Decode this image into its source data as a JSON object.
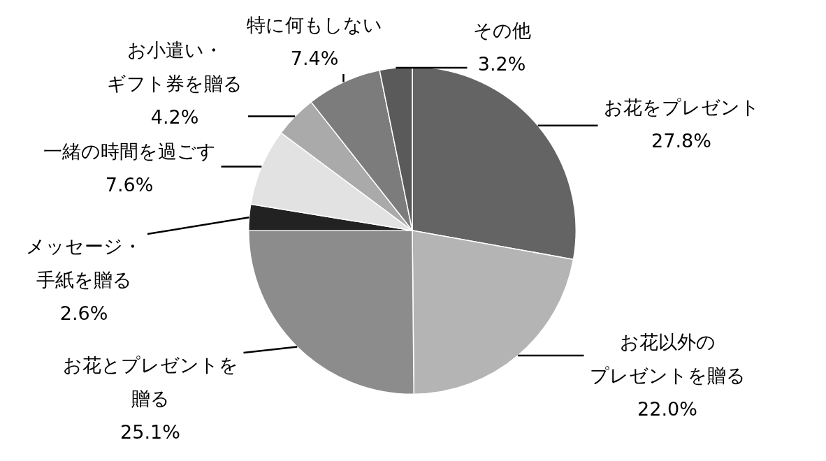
{
  "chart_data": {
    "type": "pie",
    "categories": [
      "お花をプレゼント",
      "お花以外のプレゼントを贈る",
      "お花とプレゼントを贈る",
      "メッセージ・手紙を贈る",
      "一緒の時間を過ごす",
      "お小遣い・ギフト券を贈る",
      "特に何もしない",
      "その他"
    ],
    "values": [
      27.8,
      22.0,
      25.1,
      2.6,
      7.6,
      4.2,
      7.4,
      3.2
    ],
    "value_labels": [
      "27.8%",
      "22.0%",
      "25.1%",
      "2.6%",
      "7.6%",
      "4.2%",
      "7.4%",
      "3.2%"
    ],
    "colors": [
      "#646464",
      "#b4b4b4",
      "#8c8c8c",
      "#222222",
      "#e2e2e2",
      "#aaaaaa",
      "#7c7c7c",
      "#5a5a5a"
    ],
    "legend": false
  }
}
